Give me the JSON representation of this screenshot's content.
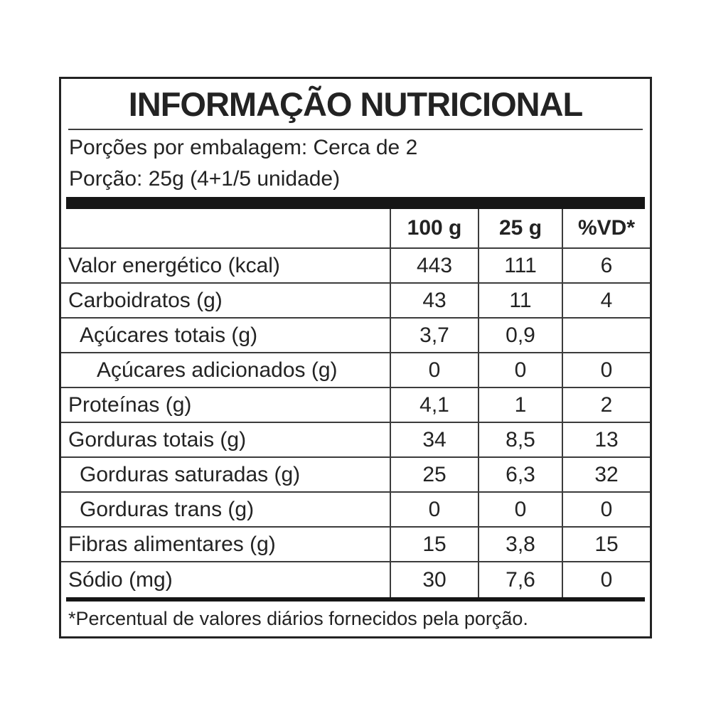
{
  "label": {
    "title": "INFORMAÇÃO NUTRICIONAL",
    "servings_line": "Porções por embalagem: Cerca de 2",
    "portion_line": "Porção: 25g (4+1/5 unidade)",
    "footnote": "*Percentual de valores diários fornecidos pela porção.",
    "colors": {
      "text": "#232323",
      "rule_line": "#3c3c3c",
      "thick_bar": "#161616",
      "background": "#ffffff"
    }
  },
  "table": {
    "header": {
      "label": "",
      "col_100g": "100 g",
      "col_25g": "25 g",
      "col_vd": "%VD*"
    },
    "rows": [
      {
        "label": "Valor energético (kcal)",
        "indent": 0,
        "per_100g": "443",
        "per_25g": "111",
        "vd_percent": "6"
      },
      {
        "label": "Carboidratos (g)",
        "indent": 0,
        "per_100g": "43",
        "per_25g": "11",
        "vd_percent": "4"
      },
      {
        "label": "Açúcares totais (g)",
        "indent": 1,
        "per_100g": "3,7",
        "per_25g": "0,9",
        "vd_percent": ""
      },
      {
        "label": "Açúcares adicionados (g)",
        "indent": 2,
        "per_100g": "0",
        "per_25g": "0",
        "vd_percent": "0"
      },
      {
        "label": "Proteínas (g)",
        "indent": 0,
        "per_100g": "4,1",
        "per_25g": "1",
        "vd_percent": "2"
      },
      {
        "label": "Gorduras totais (g)",
        "indent": 0,
        "per_100g": "34",
        "per_25g": "8,5",
        "vd_percent": "13"
      },
      {
        "label": "Gorduras saturadas (g)",
        "indent": 1,
        "per_100g": "25",
        "per_25g": "6,3",
        "vd_percent": "32"
      },
      {
        "label": "Gorduras trans (g)",
        "indent": 1,
        "per_100g": "0",
        "per_25g": "0",
        "vd_percent": "0"
      },
      {
        "label": "Fibras alimentares (g)",
        "indent": 0,
        "per_100g": "15",
        "per_25g": "3,8",
        "vd_percent": "15"
      },
      {
        "label": "Sódio (mg)",
        "indent": 0,
        "per_100g": "30",
        "per_25g": "7,6",
        "vd_percent": "0"
      }
    ]
  }
}
